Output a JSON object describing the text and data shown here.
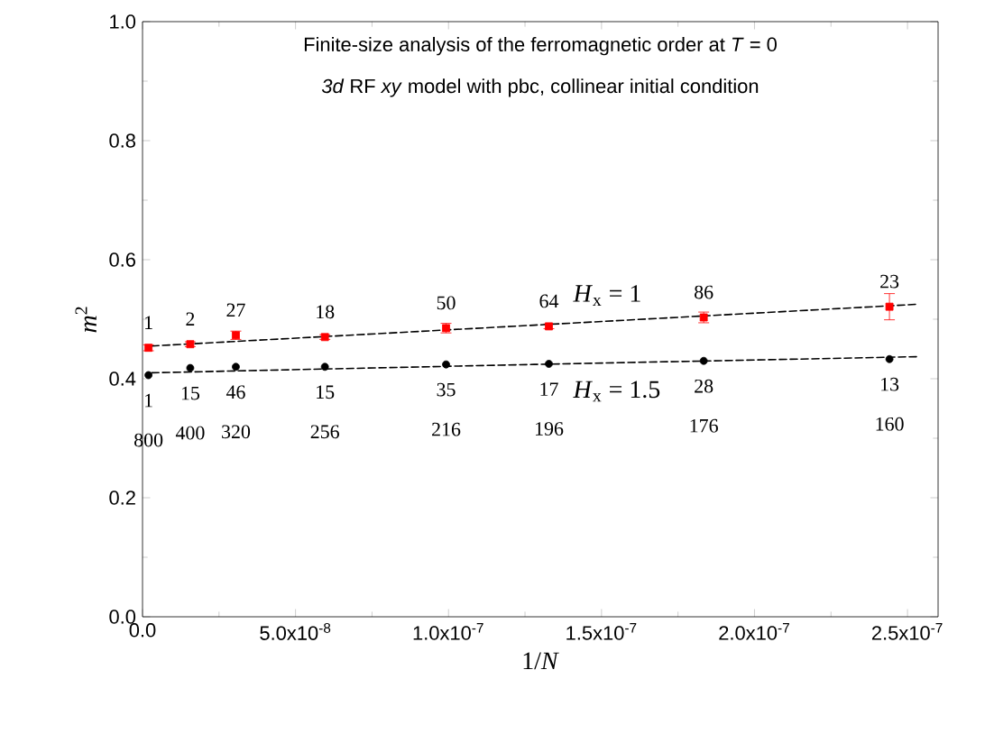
{
  "chart_data": {
    "type": "scatter",
    "title": "Finite-size analysis of the ferromagnetic order at *T* = 0",
    "subtitle": "*3d* RF *xy* model with pbc, collinear initial condition",
    "xlabel": "1/*N*",
    "ylabel": "*m*$^{2}$",
    "x": [
      1.95e-09,
      1.56e-08,
      3.05e-08,
      5.96e-08,
      9.92e-08,
      1.328e-07,
      1.834e-07,
      2.441e-07
    ],
    "series": [
      {
        "name": "*H*$_{x}$ = 1",
        "color": "#ff0000",
        "marker": "square",
        "values": [
          0.452,
          0.458,
          0.473,
          0.47,
          0.485,
          0.488,
          0.503,
          0.521
        ],
        "errors": [
          0.005,
          0.004,
          0.007,
          0.004,
          0.008,
          0.004,
          0.009,
          0.022
        ]
      },
      {
        "name": "*H*$_{x}$ = 1.5",
        "color": "#000000",
        "marker": "circle",
        "values": [
          0.406,
          0.418,
          0.42,
          0.42,
          0.424,
          0.425,
          0.43,
          0.433
        ]
      },
      {
        "type": "line",
        "color": "#000000",
        "line_style": "dashed",
        "marker": "none",
        "x": [
          3e-09,
          1.28e-07,
          2.53e-07
        ],
        "values": [
          0.455,
          0.49,
          0.525
        ]
      },
      {
        "type": "line",
        "color": "#000000",
        "line_style": "dashed",
        "marker": "none",
        "x": [
          3e-09,
          1.28e-07,
          2.53e-07
        ],
        "values": [
          0.41,
          0.424,
          0.437
        ]
      }
    ],
    "xlim": [
      0,
      2.6e-07
    ],
    "ylim": [
      0,
      1.0
    ],
    "xticks": [
      {
        "value": 0,
        "label": "0.0"
      },
      {
        "value": 5e-08,
        "label": "5.0x10$^{-8}$"
      },
      {
        "value": 1e-07,
        "label": "1.0x10$^{-7}$"
      },
      {
        "value": 1.5e-07,
        "label": "1.5x10$^{-7}$"
      },
      {
        "value": 2e-07,
        "label": "2.0x10$^{-7}$"
      },
      {
        "value": 2.5e-07,
        "label": "2.5x10$^{-7}$"
      }
    ],
    "yticks": [
      {
        "value": 0,
        "label": "0.0"
      },
      {
        "value": 0.2,
        "label": "0.2"
      },
      {
        "value": 0.4,
        "label": "0.4"
      },
      {
        "value": 0.6,
        "label": "0.6"
      },
      {
        "value": 0.8,
        "label": "0.8"
      },
      {
        "value": 1.0,
        "label": "1.0"
      }
    ],
    "grid": false,
    "legend": false,
    "annotations": [
      {
        "text": "1",
        "x": 1.95e-09,
        "y": 0.452
      },
      {
        "text": "2",
        "x": 1.56e-08,
        "y": 0.458
      },
      {
        "text": "27",
        "x": 3.05e-08,
        "y": 0.473
      },
      {
        "text": "18",
        "x": 5.96e-08,
        "y": 0.47
      },
      {
        "text": "50",
        "x": 9.92e-08,
        "y": 0.485
      },
      {
        "text": "64",
        "x": 1.328e-07,
        "y": 0.488
      },
      {
        "text": "86",
        "x": 1.834e-07,
        "y": 0.503
      },
      {
        "text": "23",
        "x": 2.441e-07,
        "y": 0.521
      },
      {
        "text": "1",
        "x": 1.95e-09,
        "y": 0.406
      },
      {
        "text": "15",
        "x": 1.56e-08,
        "y": 0.418
      },
      {
        "text": "46",
        "x": 3.05e-08,
        "y": 0.42
      },
      {
        "text": "15",
        "x": 5.96e-08,
        "y": 0.42
      },
      {
        "text": "35",
        "x": 9.92e-08,
        "y": 0.424
      },
      {
        "text": "17",
        "x": 1.328e-07,
        "y": 0.425
      },
      {
        "text": "28",
        "x": 1.834e-07,
        "y": 0.43
      },
      {
        "text": "13",
        "x": 2.441e-07,
        "y": 0.433
      },
      {
        "text": "800",
        "x": 1.95e-09,
        "y": 0.406
      },
      {
        "text": "400",
        "x": 1.56e-08,
        "y": 0.418
      },
      {
        "text": "320",
        "x": 3.05e-08,
        "y": 0.42
      },
      {
        "text": "256",
        "x": 5.96e-08,
        "y": 0.42
      },
      {
        "text": "216",
        "x": 9.92e-08,
        "y": 0.424
      },
      {
        "text": "196",
        "x": 1.328e-07,
        "y": 0.425
      },
      {
        "text": "176",
        "x": 1.834e-07,
        "y": 0.43
      },
      {
        "text": "160",
        "x": 2.441e-07,
        "y": 0.433
      }
    ]
  }
}
